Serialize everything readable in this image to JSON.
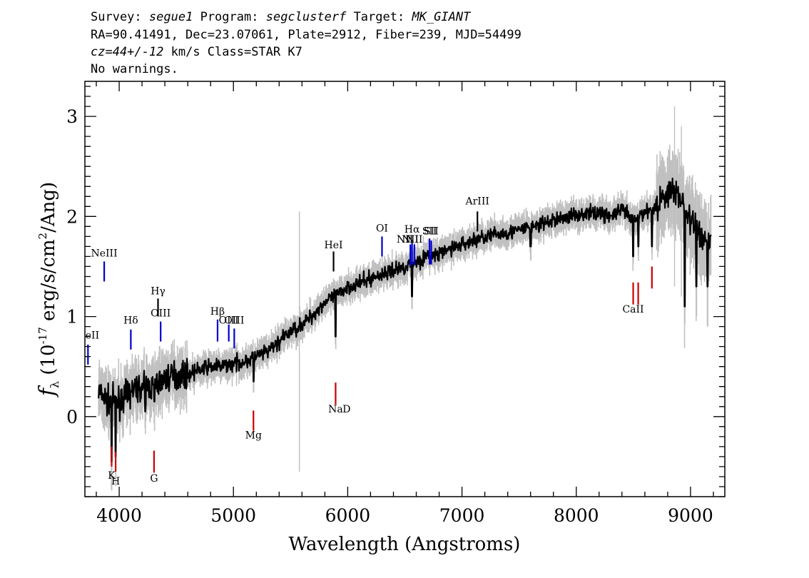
{
  "header": {
    "line1": {
      "survey_label": "Survey:",
      "survey": "segue1",
      "program_label": "Program:",
      "program": "segclusterf",
      "target_label": "Target:",
      "target": "MK_GIANT"
    },
    "line2": "RA=90.41491, Dec=23.07061, Plate=2912, Fiber=239, MJD=54499",
    "line3": {
      "cz": "cz=44+/-12",
      "rest": "km/s Class=STAR K7"
    },
    "line4": "No warnings."
  },
  "chart_data": {
    "type": "line",
    "xlabel": "Wavelength (Angstroms)",
    "ylabel": {
      "symbol": "f",
      "subscript": "λ",
      "pre": "(10",
      "exp1": "-17",
      "mid": "erg/s/cm",
      "exp2": "2",
      "post": "/Ang)"
    },
    "xlim": [
      3700,
      9300
    ],
    "ylim": [
      -0.8,
      3.35
    ],
    "x_ticks": [
      4000,
      5000,
      6000,
      7000,
      8000,
      9000
    ],
    "y_ticks": [
      0,
      1,
      2,
      3
    ],
    "series_color": "#000000",
    "noise_color": "#c0c0c0",
    "continuum": [
      [
        3820,
        0.25
      ],
      [
        3900,
        0.15
      ],
      [
        4000,
        0.15
      ],
      [
        4100,
        0.25
      ],
      [
        4200,
        0.3
      ],
      [
        4300,
        0.3
      ],
      [
        4400,
        0.38
      ],
      [
        4500,
        0.42
      ],
      [
        4600,
        0.42
      ],
      [
        4700,
        0.47
      ],
      [
        4800,
        0.5
      ],
      [
        4900,
        0.5
      ],
      [
        5000,
        0.53
      ],
      [
        5100,
        0.55
      ],
      [
        5200,
        0.6
      ],
      [
        5300,
        0.65
      ],
      [
        5400,
        0.75
      ],
      [
        5500,
        0.85
      ],
      [
        5600,
        0.92
      ],
      [
        5700,
        1.02
      ],
      [
        5800,
        1.15
      ],
      [
        5900,
        1.2
      ],
      [
        6000,
        1.3
      ],
      [
        6100,
        1.33
      ],
      [
        6200,
        1.38
      ],
      [
        6300,
        1.42
      ],
      [
        6400,
        1.46
      ],
      [
        6500,
        1.5
      ],
      [
        6600,
        1.55
      ],
      [
        6700,
        1.6
      ],
      [
        6800,
        1.62
      ],
      [
        6900,
        1.68
      ],
      [
        7000,
        1.72
      ],
      [
        7100,
        1.76
      ],
      [
        7200,
        1.8
      ],
      [
        7300,
        1.82
      ],
      [
        7400,
        1.84
      ],
      [
        7500,
        1.86
      ],
      [
        7600,
        1.9
      ],
      [
        7700,
        1.92
      ],
      [
        7800,
        1.96
      ],
      [
        7900,
        1.99
      ],
      [
        8000,
        2.02
      ],
      [
        8100,
        2.03
      ],
      [
        8200,
        2.04
      ],
      [
        8300,
        2.0
      ],
      [
        8400,
        2.07
      ],
      [
        8500,
        1.95
      ],
      [
        8600,
        2.05
      ],
      [
        8700,
        2.1
      ],
      [
        8800,
        2.25
      ],
      [
        8900,
        2.22
      ],
      [
        9000,
        1.95
      ],
      [
        9100,
        1.8
      ],
      [
        9180,
        1.75
      ]
    ],
    "features": [
      [
        3933,
        -0.45
      ],
      [
        3968,
        -0.4
      ],
      [
        4227,
        0.05
      ],
      [
        4308,
        0.15
      ],
      [
        5175,
        0.35
      ],
      [
        5893,
        0.8
      ],
      [
        6563,
        1.2
      ],
      [
        7600,
        1.7
      ],
      [
        8498,
        1.6
      ],
      [
        8542,
        1.7
      ],
      [
        8662,
        1.7
      ],
      [
        8950,
        1.1
      ],
      [
        9050,
        1.3
      ],
      [
        9150,
        1.3
      ]
    ],
    "emission_lines": [
      {
        "label": "NeII",
        "wavelength": 3727,
        "color": "#0000cc",
        "y0": 0.52,
        "y1": 0.72,
        "label_y": 0.78
      },
      {
        "label": "NeIII",
        "wavelength": 3869,
        "color": "#0000cc",
        "y0": 1.35,
        "y1": 1.55,
        "label_y": 1.6
      },
      {
        "label": "Hδ",
        "wavelength": 4102,
        "color": "#0000cc",
        "y0": 0.67,
        "y1": 0.87,
        "label_y": 0.93
      },
      {
        "label": "Hγ",
        "wavelength": 4340,
        "color": "#000000",
        "y0": 1.0,
        "y1": 1.18,
        "label_y": 1.22
      },
      {
        "label": "OIII",
        "wavelength": 4363,
        "color": "#0000cc",
        "y0": 0.75,
        "y1": 0.95,
        "label_y": 1.0
      },
      {
        "label": "Hβ",
        "wavelength": 4861,
        "color": "#0000cc",
        "y0": 0.75,
        "y1": 0.97,
        "label_y": 1.02
      },
      {
        "label": "OIII",
        "wavelength": 4959,
        "color": "#0000cc",
        "y0": 0.75,
        "y1": 0.92,
        "label_y": 0.93
      },
      {
        "label": "OIII",
        "wavelength": 5007,
        "color": "#0000cc",
        "y0": 0.68,
        "y1": 0.88,
        "label_y": 0.93
      },
      {
        "label": "HeI",
        "wavelength": 5876,
        "color": "#000000",
        "y0": 1.45,
        "y1": 1.65,
        "label_y": 1.68
      },
      {
        "label": "OI",
        "wavelength": 6300,
        "color": "#0000cc",
        "y0": 1.6,
        "y1": 1.8,
        "label_y": 1.85
      },
      {
        "label": "NII",
        "wavelength": 6548,
        "color": "#0000cc",
        "y0": 1.5,
        "y1": 1.72,
        "label_y": 1.74
      },
      {
        "label": "Hα",
        "wavelength": 6563,
        "color": "#0000cc",
        "y0": 1.52,
        "y1": 1.74,
        "label_y": 1.84
      },
      {
        "label": "NII",
        "wavelength": 6583,
        "color": "#0000cc",
        "y0": 1.52,
        "y1": 1.72,
        "label_y": 1.74
      },
      {
        "label": "SII",
        "wavelength": 6716,
        "color": "#0000cc",
        "y0": 1.52,
        "y1": 1.78,
        "label_y": 1.82
      },
      {
        "label": "SII",
        "wavelength": 6731,
        "color": "#0000cc",
        "y0": 1.52,
        "y1": 1.76,
        "label_y": 1.82
      },
      {
        "label": "ArIII",
        "wavelength": 7135,
        "color": "#000000",
        "y0": 1.85,
        "y1": 2.05,
        "label_y": 2.12
      }
    ],
    "absorption_lines": [
      {
        "label": "K",
        "wavelength": 3934,
        "color": "#cc0000",
        "y0": -0.5,
        "y1": -0.3,
        "label_y": -0.62
      },
      {
        "label": "H",
        "wavelength": 3969,
        "color": "#cc0000",
        "y0": -0.55,
        "y1": -0.35,
        "label_y": -0.68
      },
      {
        "label": "G",
        "wavelength": 4305,
        "color": "#cc0000",
        "y0": -0.56,
        "y1": -0.34,
        "label_y": -0.65
      },
      {
        "label": "Mg",
        "wavelength": 5175,
        "color": "#cc0000",
        "y0": -0.14,
        "y1": 0.06,
        "label_y": -0.22
      },
      {
        "label": "Na",
        "wavelength": 5894,
        "color": "#cc0000",
        "y0": 0.12,
        "y1": 0.34,
        "label_y": 0.04
      },
      {
        "label": "CaII",
        "wavelength": 8498,
        "color": "#cc0000",
        "y0": 1.12,
        "y1": 1.34,
        "label_y": 1.04
      },
      {
        "label": "",
        "wavelength": 8542,
        "color": "#cc0000",
        "y0": 1.12,
        "y1": 1.34,
        "label_y": 1.04
      },
      {
        "label": "",
        "wavelength": 8662,
        "color": "#cc0000",
        "y0": 1.28,
        "y1": 1.5,
        "label_y": 1.2
      }
    ],
    "extra_labels": [
      {
        "label": "NII",
        "wavelength": 6500,
        "label_y": 1.74
      },
      {
        "label": "D",
        "wavelength": 5990,
        "label_y": 0.04
      }
    ]
  }
}
